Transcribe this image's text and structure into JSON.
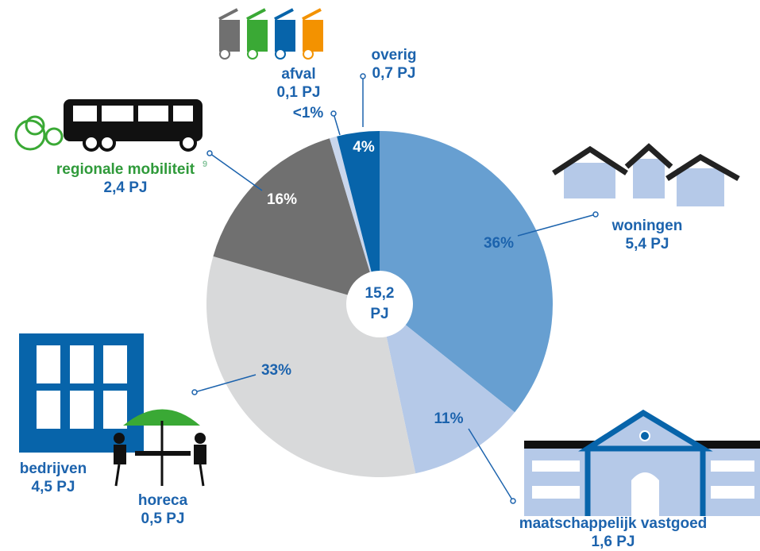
{
  "chart_data": {
    "type": "pie",
    "categories": [
      "woningen",
      "maatschappelijk vastgoed",
      null,
      "regionale mobiliteit",
      "afval",
      "overig"
    ],
    "amounts": [
      "5,4 PJ",
      "1,6 PJ",
      null,
      "2,4 PJ",
      "0,1 PJ",
      "0,7 PJ"
    ],
    "values": [
      36,
      11,
      33,
      16,
      0.7,
      4
    ],
    "value_labels": [
      "36%",
      "11%",
      "33%",
      "16%",
      "<1%",
      "4%"
    ],
    "colors": [
      "#679fd1",
      "#b5c9e8",
      "#d8d9da",
      "#707070",
      "#c9d6ec",
      "#0764aa"
    ],
    "callouts": [
      {
        "name": "bedrijven",
        "amount": "4,5 PJ"
      },
      {
        "name": "horeca",
        "amount": "0,5 PJ"
      }
    ],
    "footnote_marker": "9",
    "total": "15,2",
    "total_unit": "PJ"
  }
}
